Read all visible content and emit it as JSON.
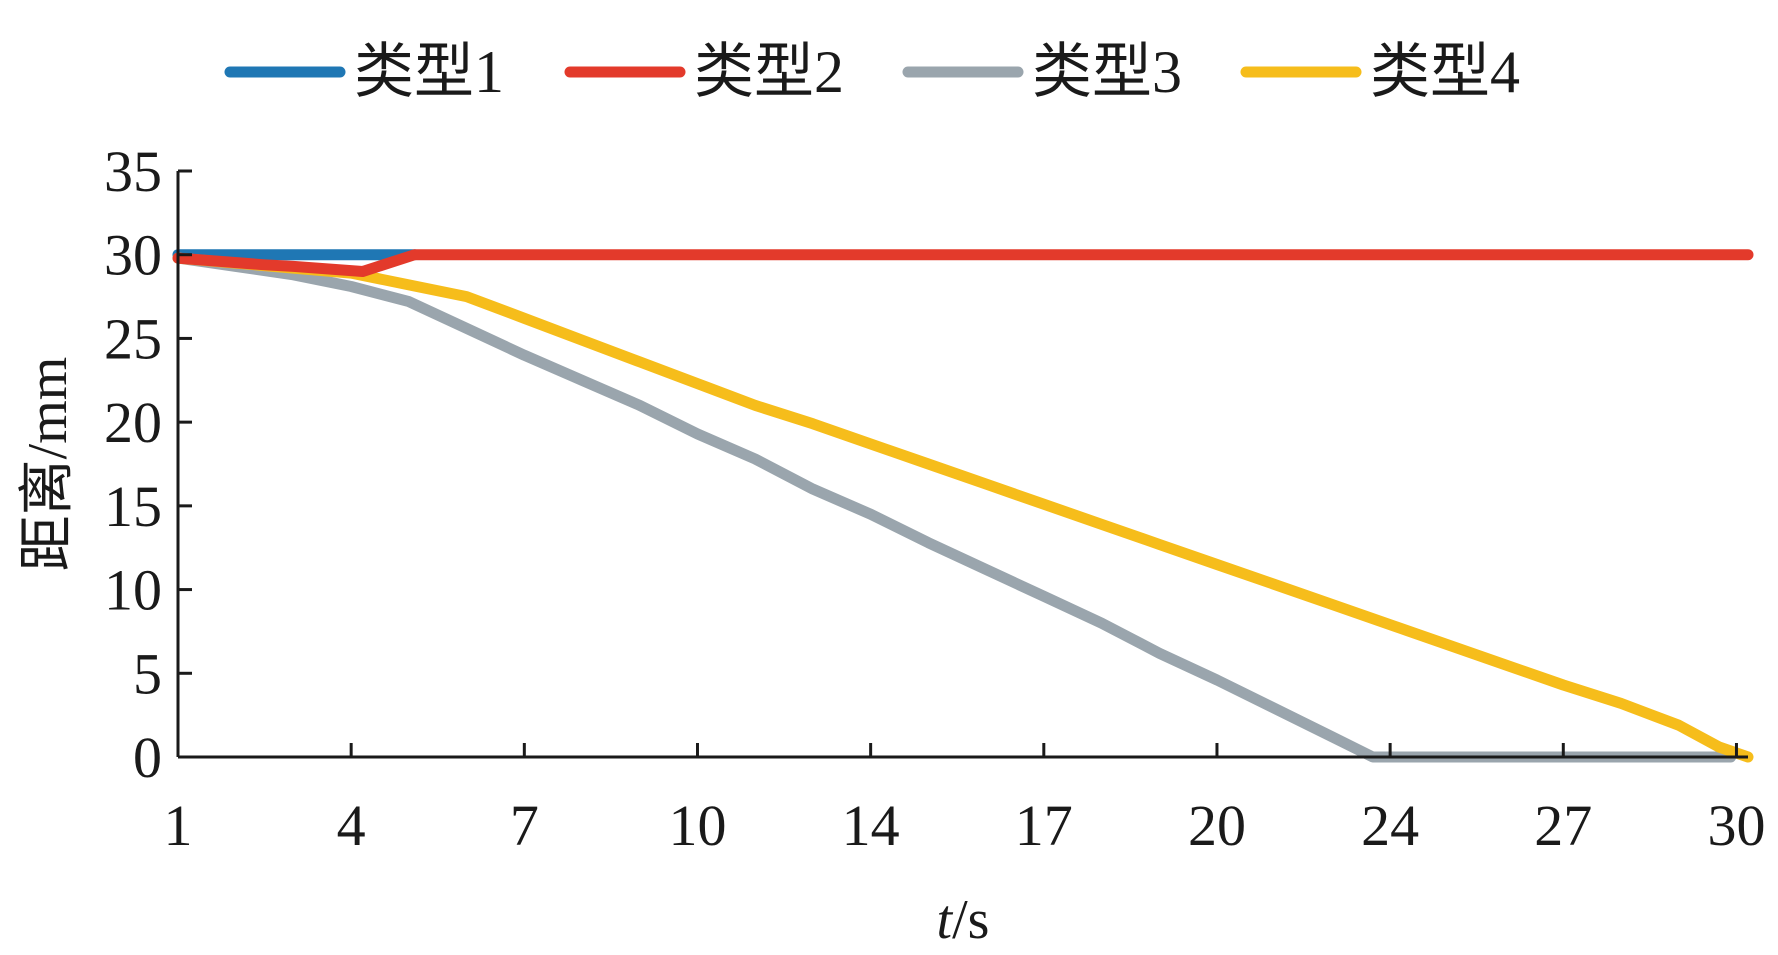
{
  "chart_data": {
    "type": "line",
    "xlabel_italic": "t",
    "xlabel_unit": "/s",
    "ylabel": "距离/mm",
    "ylim": [
      0,
      35
    ],
    "yticks": [
      0,
      5,
      10,
      15,
      20,
      25,
      30,
      35
    ],
    "x_tick_labels": [
      "1",
      "4",
      "7",
      "10",
      "14",
      "17",
      "20",
      "24",
      "27",
      "30"
    ],
    "x_tick_positions": [
      1,
      4,
      7,
      10,
      13,
      16,
      19,
      22,
      25,
      28
    ],
    "xlim": [
      1,
      28.2
    ],
    "legend_position": "top",
    "grid": false,
    "series": [
      {
        "name": "类型1",
        "color": "#1f77b4",
        "points": [
          [
            1,
            30
          ],
          [
            5.1,
            30
          ]
        ]
      },
      {
        "name": "类型2",
        "color": "#e33a2b",
        "points": [
          [
            1,
            29.8
          ],
          [
            2.5,
            29.4
          ],
          [
            3,
            29.3
          ],
          [
            4.2,
            29.0
          ],
          [
            5.1,
            30
          ],
          [
            28.2,
            30
          ]
        ]
      },
      {
        "name": "类型3",
        "color": "#9aa5ad",
        "points": [
          [
            1,
            29.8
          ],
          [
            2,
            29.3
          ],
          [
            3,
            28.8
          ],
          [
            4,
            28.1
          ],
          [
            5,
            27.2
          ],
          [
            6,
            25.6
          ],
          [
            7,
            24.0
          ],
          [
            8,
            22.5
          ],
          [
            9,
            21.0
          ],
          [
            10,
            19.3
          ],
          [
            11,
            17.8
          ],
          [
            12,
            16.0
          ],
          [
            13,
            14.5
          ],
          [
            14,
            12.8
          ],
          [
            15,
            11.2
          ],
          [
            16,
            9.6
          ],
          [
            17,
            8.0
          ],
          [
            18,
            6.2
          ],
          [
            19,
            4.6
          ],
          [
            20,
            2.9
          ],
          [
            21,
            1.2
          ],
          [
            21.7,
            0
          ],
          [
            27.9,
            0
          ]
        ]
      },
      {
        "name": "类型4",
        "color": "#f6bd1b",
        "points": [
          [
            1,
            29.8
          ],
          [
            2,
            29.5
          ],
          [
            3,
            29.2
          ],
          [
            4,
            28.9
          ],
          [
            5,
            28.2
          ],
          [
            6,
            27.5
          ],
          [
            7,
            26.2
          ],
          [
            8,
            24.9
          ],
          [
            9,
            23.6
          ],
          [
            10,
            22.3
          ],
          [
            11,
            21.0
          ],
          [
            12,
            19.9
          ],
          [
            13,
            18.7
          ],
          [
            14,
            17.5
          ],
          [
            15,
            16.3
          ],
          [
            16,
            15.1
          ],
          [
            17,
            13.9
          ],
          [
            18,
            12.7
          ],
          [
            19,
            11.5
          ],
          [
            20,
            10.3
          ],
          [
            21,
            9.1
          ],
          [
            22,
            7.9
          ],
          [
            23,
            6.7
          ],
          [
            24,
            5.5
          ],
          [
            25,
            4.3
          ],
          [
            26,
            3.2
          ],
          [
            27,
            1.9
          ],
          [
            27.7,
            0.6
          ],
          [
            28.2,
            0
          ]
        ]
      }
    ]
  }
}
